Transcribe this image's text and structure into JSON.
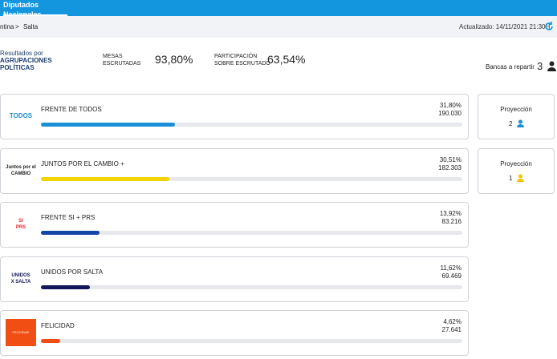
{
  "header": {
    "tab": "Diputados Nacionales",
    "breadcrumb": [
      "ntina",
      "Salta"
    ],
    "breadcrumb_separator": ">",
    "updated": "Actualizado: 14/11/2021 21:30H"
  },
  "summary": {
    "title_line1": "Resultados por",
    "title_line2": "AGRUPACIONES",
    "title_line3": "POLÍTICAS",
    "mesas_label1": "MESAS",
    "mesas_label2": "ESCRUTADAS",
    "mesas_value": "93,80%",
    "participacion_label1": "PARTICIPACIÓN",
    "participacion_label2": "SOBRE ESCRUTADO",
    "participacion_value": "63,54%",
    "bancas_label": "Bancas a repartir",
    "bancas_value": 3
  },
  "parties": [
    {
      "name": "FRENTE DE TODOS",
      "logo": [
        "TODOS"
      ],
      "percent": {
        "value": 31.8,
        "label": "31,80%"
      },
      "votes": "190.030",
      "color": "#1a8fd6",
      "logo_color": "#1a8fd6"
    },
    {
      "name": "JUNTOS POR EL CAMBIO +",
      "logo": [
        "Juntos por el",
        "CAMBIO"
      ],
      "percent": {
        "value": 30.51,
        "label": "30,51%"
      },
      "votes": "182.303",
      "color": "#f2d400",
      "logo_color": "#222222"
    },
    {
      "name": "FRENTE SI + PRS",
      "logo": [
        "SI",
        "PRS"
      ],
      "percent": {
        "value": 13.92,
        "label": "13,92%"
      },
      "votes": "83.216",
      "color": "#1547a8",
      "logo_color": "#e0262b"
    },
    {
      "name": "UNIDOS POR SALTA",
      "logo": [
        "UNIDOS",
        "X SALTA"
      ],
      "percent": {
        "value": 11.62,
        "label": "11,62%"
      },
      "votes": "69.469",
      "color": "#14185a",
      "logo_color": "#14185a"
    },
    {
      "name": "FELICIDAD",
      "logo": [
        "FELICIDAD"
      ],
      "percent": {
        "value": 4.62,
        "label": "4,62%"
      },
      "votes": "27.641",
      "color": "#f04e12",
      "logo_color": "#f04e12"
    }
  ],
  "projections": [
    {
      "label": "Proyección",
      "seats": 2,
      "color": "#1a8fd6"
    },
    {
      "label": "Proyección",
      "seats": 1,
      "color": "#f2c400"
    }
  ]
}
